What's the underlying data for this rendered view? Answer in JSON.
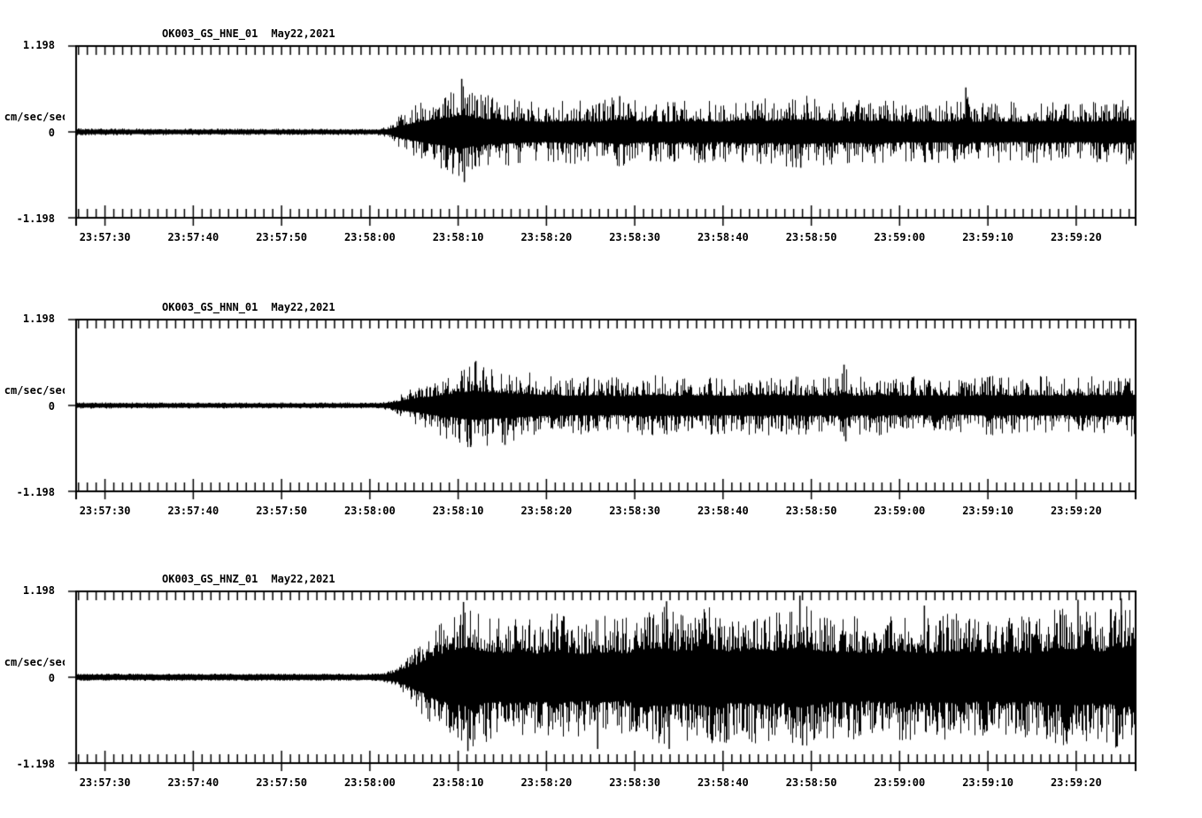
{
  "page": {
    "background": "#ffffff",
    "ink": "#000000"
  },
  "chart_data": [
    {
      "type": "line",
      "subtype": "seismogram",
      "station": "OK003_GS_HNE_01",
      "date": "May22,2021",
      "ylabel": "cm/sec/sec",
      "ylim": [
        -1.198,
        1.198
      ],
      "ytick_labels": {
        "top": "1.198",
        "zero": "0",
        "bottom": "-1.198"
      },
      "xtick_labels": [
        "23:57:30",
        "23:57:40",
        "23:57:50",
        "23:58:00",
        "23:58:10",
        "23:58:20",
        "23:58:30",
        "23:58:40",
        "23:58:50",
        "23:59:00",
        "23:59:10",
        "23:59:20"
      ],
      "x_window_seconds": 120,
      "x_first_tick_offset_sec": 3.27,
      "x_major_tick_interval_sec": 10,
      "x_minor_tick_interval_sec": 1,
      "grid": false,
      "legend": false,
      "envelope_cm_s2": [
        [
          0,
          0.05
        ],
        [
          20,
          0.045
        ],
        [
          34,
          0.045
        ],
        [
          35.5,
          0.08
        ],
        [
          36.5,
          0.22
        ],
        [
          38,
          0.34
        ],
        [
          40,
          0.5
        ],
        [
          42,
          0.6
        ],
        [
          43.6,
          0.74
        ],
        [
          45,
          0.6
        ],
        [
          47,
          0.52
        ],
        [
          50,
          0.46
        ],
        [
          53,
          0.42
        ],
        [
          56,
          0.46
        ],
        [
          59,
          0.42
        ],
        [
          61.5,
          0.52
        ],
        [
          64,
          0.44
        ],
        [
          67,
          0.42
        ],
        [
          70,
          0.46
        ],
        [
          73,
          0.42
        ],
        [
          76,
          0.5
        ],
        [
          79,
          0.46
        ],
        [
          82,
          0.52
        ],
        [
          85,
          0.46
        ],
        [
          88,
          0.44
        ],
        [
          91,
          0.48
        ],
        [
          94,
          0.42
        ],
        [
          97,
          0.44
        ],
        [
          100,
          0.44
        ],
        [
          100.7,
          0.62
        ],
        [
          101.5,
          0.42
        ],
        [
          104,
          0.44
        ],
        [
          107,
          0.42
        ],
        [
          110,
          0.46
        ],
        [
          113,
          0.42
        ],
        [
          116,
          0.44
        ],
        [
          120,
          0.46
        ]
      ],
      "spikes_cm_s2": [
        [
          43.6,
          0.74
        ],
        [
          43.9,
          -0.7
        ],
        [
          61.5,
          0.5
        ],
        [
          82,
          -0.5
        ],
        [
          100.7,
          0.62
        ]
      ],
      "texture": {
        "core_ratio": 0.3,
        "spike_power": 2.6
      }
    },
    {
      "type": "line",
      "subtype": "seismogram",
      "station": "OK003_GS_HNN_01",
      "date": "May22,2021",
      "ylabel": "cm/sec/sec",
      "ylim": [
        -1.198,
        1.198
      ],
      "ytick_labels": {
        "top": "1.198",
        "zero": "0",
        "bottom": "-1.198"
      },
      "xtick_labels": [
        "23:57:30",
        "23:57:40",
        "23:57:50",
        "23:58:00",
        "23:58:10",
        "23:58:20",
        "23:58:30",
        "23:58:40",
        "23:58:50",
        "23:59:00",
        "23:59:10",
        "23:59:20"
      ],
      "x_window_seconds": 120,
      "x_first_tick_offset_sec": 3.27,
      "x_major_tick_interval_sec": 10,
      "x_minor_tick_interval_sec": 1,
      "grid": false,
      "legend": false,
      "envelope_cm_s2": [
        [
          0,
          0.045
        ],
        [
          20,
          0.042
        ],
        [
          34,
          0.042
        ],
        [
          35.5,
          0.07
        ],
        [
          37,
          0.18
        ],
        [
          39,
          0.3
        ],
        [
          41,
          0.42
        ],
        [
          43,
          0.52
        ],
        [
          45,
          0.62
        ],
        [
          47,
          0.55
        ],
        [
          50,
          0.5
        ],
        [
          53,
          0.44
        ],
        [
          56,
          0.4
        ],
        [
          59,
          0.42
        ],
        [
          62,
          0.38
        ],
        [
          65,
          0.44
        ],
        [
          68,
          0.4
        ],
        [
          71,
          0.42
        ],
        [
          74,
          0.4
        ],
        [
          77,
          0.44
        ],
        [
          80,
          0.4
        ],
        [
          83,
          0.42
        ],
        [
          86,
          0.4
        ],
        [
          86.9,
          0.57
        ],
        [
          88,
          0.4
        ],
        [
          91,
          0.42
        ],
        [
          94,
          0.4
        ],
        [
          97,
          0.42
        ],
        [
          100,
          0.38
        ],
        [
          103,
          0.42
        ],
        [
          106,
          0.4
        ],
        [
          109,
          0.42
        ],
        [
          112,
          0.4
        ],
        [
          115,
          0.42
        ],
        [
          120,
          0.44
        ]
      ],
      "spikes_cm_s2": [
        [
          44.6,
          -0.58
        ],
        [
          45.2,
          0.62
        ],
        [
          48.5,
          -0.55
        ],
        [
          86.9,
          0.57
        ],
        [
          87.1,
          -0.5
        ]
      ],
      "texture": {
        "core_ratio": 0.3,
        "spike_power": 2.6
      }
    },
    {
      "type": "line",
      "subtype": "seismogram",
      "station": "OK003_GS_HNZ_01",
      "date": "May22,2021",
      "ylabel": "cm/sec/sec",
      "ylim": [
        -1.198,
        1.198
      ],
      "ytick_labels": {
        "top": "1.198",
        "zero": "0",
        "bottom": "-1.198"
      },
      "xtick_labels": [
        "23:57:30",
        "23:57:40",
        "23:57:50",
        "23:58:00",
        "23:58:10",
        "23:58:20",
        "23:58:30",
        "23:58:40",
        "23:58:50",
        "23:59:00",
        "23:59:10",
        "23:59:20"
      ],
      "x_window_seconds": 120,
      "x_first_tick_offset_sec": 3.27,
      "x_major_tick_interval_sec": 10,
      "x_minor_tick_interval_sec": 1,
      "grid": false,
      "legend": false,
      "envelope_cm_s2": [
        [
          0,
          0.05
        ],
        [
          20,
          0.05
        ],
        [
          33,
          0.05
        ],
        [
          35,
          0.07
        ],
        [
          36.5,
          0.14
        ],
        [
          38,
          0.35
        ],
        [
          40,
          0.65
        ],
        [
          42,
          0.9
        ],
        [
          44,
          1.02
        ],
        [
          46,
          0.92
        ],
        [
          48,
          0.85
        ],
        [
          50,
          0.9
        ],
        [
          52,
          0.82
        ],
        [
          54,
          0.92
        ],
        [
          56,
          0.85
        ],
        [
          58,
          0.8
        ],
        [
          60,
          0.88
        ],
        [
          62,
          0.82
        ],
        [
          64,
          0.95
        ],
        [
          66,
          1.02
        ],
        [
          68,
          0.9
        ],
        [
          70,
          0.95
        ],
        [
          72,
          1.0
        ],
        [
          74,
          0.9
        ],
        [
          76,
          0.92
        ],
        [
          78,
          0.96
        ],
        [
          80,
          0.9
        ],
        [
          82,
          1.08
        ],
        [
          84,
          0.92
        ],
        [
          86,
          0.85
        ],
        [
          88,
          0.88
        ],
        [
          90,
          0.82
        ],
        [
          92,
          0.85
        ],
        [
          94,
          0.9
        ],
        [
          96,
          0.84
        ],
        [
          98,
          0.88
        ],
        [
          100,
          0.92
        ],
        [
          102,
          0.85
        ],
        [
          104,
          0.82
        ],
        [
          106,
          0.88
        ],
        [
          108,
          0.85
        ],
        [
          110,
          0.92
        ],
        [
          112,
          1.0
        ],
        [
          114,
          0.95
        ],
        [
          116,
          0.9
        ],
        [
          118,
          1.0
        ],
        [
          120,
          1.05
        ]
      ],
      "spikes_cm_s2": [
        [
          43.8,
          1.05
        ],
        [
          44.3,
          -1.03
        ],
        [
          59,
          -1.0
        ],
        [
          66.8,
          1.06
        ],
        [
          67.1,
          -1.0
        ],
        [
          81.9,
          1.14
        ],
        [
          82.2,
          -0.95
        ],
        [
          96,
          1.0
        ],
        [
          113.4,
          1.08
        ],
        [
          118.3,
          1.1
        ]
      ],
      "texture": {
        "core_ratio": 0.38,
        "spike_power": 1.7
      }
    }
  ]
}
